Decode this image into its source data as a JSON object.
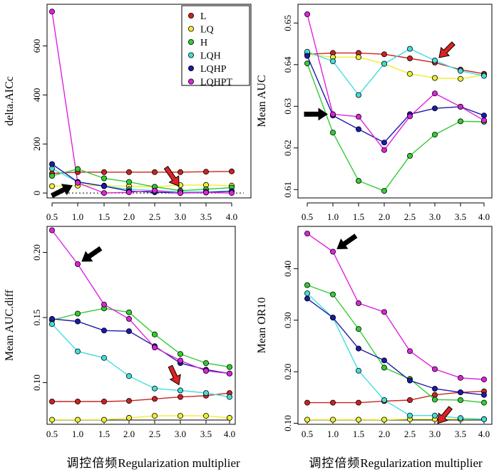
{
  "figure": {
    "xlabel_cn": "调控倍频",
    "xlabel_en": "Regularization multiplier"
  },
  "series_colors": {
    "L": "#cc2222",
    "LQ": "#eeee33",
    "H": "#33cc33",
    "LQH": "#44dddd",
    "LQHP": "#1a1aaa",
    "LQHPT": "#dd22dd"
  },
  "chart_data": [
    {
      "type": "line",
      "ylabel": "delta.AICc",
      "x": [
        0.5,
        1.0,
        1.5,
        2.0,
        2.5,
        3.0,
        3.5,
        4.0
      ],
      "ylim": [
        -20,
        770
      ],
      "yticks": [
        0,
        200,
        400,
        600
      ],
      "reference_line": 0,
      "legend": {
        "placement": "top-right",
        "entries": [
          "L",
          "LQ",
          "H",
          "LQH",
          "LQHP",
          "LQHPT"
        ]
      },
      "series": [
        {
          "name": "L",
          "values": [
            80,
            85,
            85,
            85,
            85,
            85,
            87,
            88
          ]
        },
        {
          "name": "LQ",
          "values": [
            28,
            30,
            30,
            28,
            25,
            32,
            33,
            30
          ]
        },
        {
          "name": "H",
          "values": [
            70,
            98,
            60,
            45,
            25,
            10,
            15,
            22
          ]
        },
        {
          "name": "LQH",
          "values": [
            100,
            45,
            28,
            15,
            10,
            5,
            5,
            7
          ]
        },
        {
          "name": "LQHP",
          "values": [
            118,
            45,
            28,
            8,
            3,
            0,
            2,
            8
          ]
        },
        {
          "name": "LQHPT",
          "values": [
            740,
            42,
            0,
            3,
            10,
            0,
            2,
            0
          ]
        }
      ],
      "arrows": [
        {
          "color": "black",
          "points_to": [
            1.0,
            42
          ]
        },
        {
          "color": "red",
          "points_to": [
            3.0,
            5
          ]
        }
      ]
    },
    {
      "type": "line",
      "ylabel": "Mean AUC",
      "x": [
        0.5,
        1.0,
        1.5,
        2.0,
        2.5,
        3.0,
        3.5,
        4.0
      ],
      "ylim": [
        0.608,
        0.6545
      ],
      "yticks": [
        0.61,
        0.62,
        0.63,
        0.64,
        0.65
      ],
      "yticklabels": [
        "0.61",
        "0.62",
        "0.63",
        "0.64",
        "0.65"
      ],
      "series": [
        {
          "name": "L",
          "values": [
            0.6425,
            0.6428,
            0.6428,
            0.6425,
            0.6415,
            0.6405,
            0.6388,
            0.6378
          ]
        },
        {
          "name": "LQ",
          "values": [
            0.6425,
            0.6418,
            0.6418,
            0.6402,
            0.6378,
            0.6368,
            0.6366,
            0.6375
          ]
        },
        {
          "name": "H",
          "values": [
            0.6403,
            0.6237,
            0.6121,
            0.6097,
            0.6181,
            0.6232,
            0.6264,
            0.6263
          ]
        },
        {
          "name": "LQH",
          "values": [
            0.6431,
            0.6408,
            0.6327,
            0.6402,
            0.6438,
            0.641,
            0.6385,
            0.6373
          ]
        },
        {
          "name": "LQHP",
          "values": [
            0.6421,
            0.6278,
            0.6245,
            0.6213,
            0.6281,
            0.6295,
            0.6299,
            0.6278
          ]
        },
        {
          "name": "LQHPT",
          "values": [
            0.6521,
            0.6281,
            0.6275,
            0.6195,
            0.6276,
            0.6331,
            0.6299,
            0.6266
          ]
        }
      ],
      "arrows": [
        {
          "color": "black",
          "points_to": [
            1.0,
            0.6281
          ]
        },
        {
          "color": "red",
          "points_to": [
            3.0,
            0.641
          ]
        }
      ]
    },
    {
      "type": "line",
      "ylabel": "Mean AUC.diff",
      "x": [
        0.5,
        1.0,
        1.5,
        2.0,
        2.5,
        3.0,
        3.5,
        4.0
      ],
      "ylim": [
        0.068,
        0.22
      ],
      "yticks": [
        0.1,
        0.15,
        0.2
      ],
      "yticklabels": [
        "0.10",
        "0.15",
        "0.20"
      ],
      "series": [
        {
          "name": "L",
          "values": [
            0.0855,
            0.0855,
            0.0855,
            0.086,
            0.0875,
            0.089,
            0.09,
            0.092
          ]
        },
        {
          "name": "LQ",
          "values": [
            0.0715,
            0.0715,
            0.0715,
            0.073,
            0.0745,
            0.0745,
            0.0745,
            0.073
          ]
        },
        {
          "name": "H",
          "values": [
            0.148,
            0.153,
            0.157,
            0.154,
            0.137,
            0.122,
            0.115,
            0.112
          ]
        },
        {
          "name": "LQH",
          "values": [
            0.145,
            0.124,
            0.119,
            0.105,
            0.0955,
            0.094,
            0.092,
            0.089
          ]
        },
        {
          "name": "LQHP",
          "values": [
            0.149,
            0.147,
            0.14,
            0.1395,
            0.128,
            0.115,
            0.11,
            0.107
          ]
        },
        {
          "name": "LQHPT",
          "values": [
            0.217,
            0.191,
            0.16,
            0.149,
            0.127,
            0.117,
            0.109,
            0.107
          ]
        }
      ],
      "arrows": [
        {
          "color": "black",
          "points_to": [
            1.0,
            0.191
          ]
        },
        {
          "color": "red",
          "points_to": [
            3.0,
            0.094
          ]
        }
      ]
    },
    {
      "type": "line",
      "ylabel": "Mean OR10",
      "x": [
        0.5,
        1.0,
        1.5,
        2.0,
        2.5,
        3.0,
        3.5,
        4.0
      ],
      "ylim": [
        0.098,
        0.482
      ],
      "yticks": [
        0.1,
        0.2,
        0.3,
        0.4
      ],
      "yticklabels": [
        "0.10",
        "0.20",
        "0.30",
        "0.40"
      ],
      "series": [
        {
          "name": "L",
          "values": [
            0.14,
            0.14,
            0.14,
            0.143,
            0.145,
            0.155,
            0.16,
            0.162
          ]
        },
        {
          "name": "LQ",
          "values": [
            0.107,
            0.107,
            0.107,
            0.107,
            0.108,
            0.108,
            0.108,
            0.108
          ]
        },
        {
          "name": "H",
          "values": [
            0.368,
            0.35,
            0.283,
            0.208,
            0.186,
            0.146,
            0.145,
            0.14
          ]
        },
        {
          "name": "LQH",
          "values": [
            0.352,
            0.305,
            0.202,
            0.145,
            0.115,
            0.115,
            0.11,
            0.108
          ]
        },
        {
          "name": "LQHP",
          "values": [
            0.342,
            0.305,
            0.245,
            0.222,
            0.183,
            0.167,
            0.16,
            0.155
          ]
        },
        {
          "name": "LQHPT",
          "values": [
            0.468,
            0.433,
            0.333,
            0.316,
            0.24,
            0.205,
            0.188,
            0.185
          ]
        }
      ],
      "arrows": [
        {
          "color": "black",
          "points_to": [
            1.0,
            0.433
          ]
        },
        {
          "color": "red",
          "points_to": [
            3.0,
            0.108
          ]
        }
      ]
    }
  ]
}
